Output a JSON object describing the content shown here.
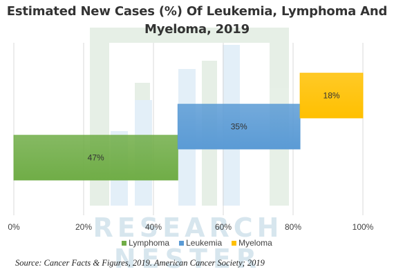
{
  "title": "Estimated New Cases (%) Of Leukemia, Lymphoma And Myeloma, 2019",
  "chart_data": {
    "type": "bar",
    "orientation": "horizontal",
    "stacking": "waterfall",
    "title": "Estimated New Cases (%) Of Leukemia, Lymphoma And Myeloma, 2019",
    "xlabel": "",
    "ylabel": "",
    "xlim": [
      0,
      100
    ],
    "x_tick_labels": [
      "0%",
      "20%",
      "40%",
      "60%",
      "80%",
      "100%"
    ],
    "grid": "vertical",
    "legend_position": "bottom",
    "series": [
      {
        "name": "Lymphoma",
        "start": 0,
        "value": 47,
        "label": "47%",
        "color": "#70ad47"
      },
      {
        "name": "Leukemia",
        "start": 47,
        "value": 35,
        "label": "35%",
        "color": "#5b9bd5"
      },
      {
        "name": "Myeloma",
        "start": 82,
        "value": 18,
        "label": "18%",
        "color": "#ffc000"
      }
    ]
  },
  "legend": {
    "items": [
      {
        "label": "Lymphoma",
        "color": "#70ad47"
      },
      {
        "label": "Leukemia",
        "color": "#5b9bd5"
      },
      {
        "label": "Myeloma",
        "color": "#ffc000"
      }
    ]
  },
  "watermark": {
    "line1": "RESEARCH",
    "line2": "NESTER"
  },
  "source": "Source: Cancer Facts & Figures, 2019. American Cancer Society; 2019"
}
